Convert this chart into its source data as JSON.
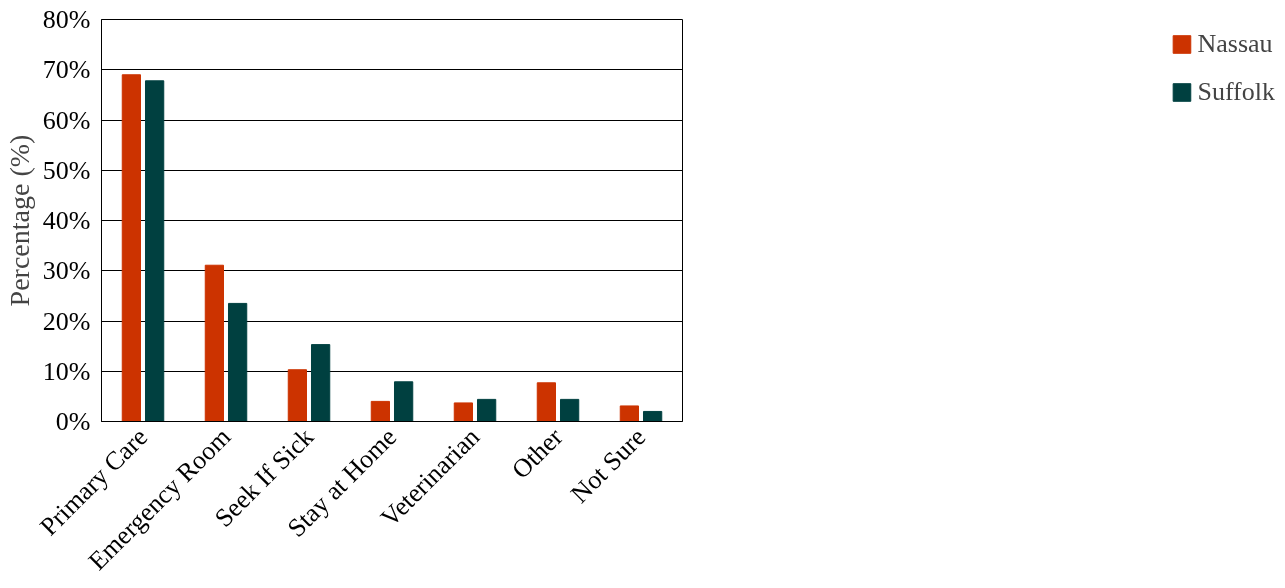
{
  "chart_data": {
    "type": "bar",
    "ylabel": "Percentage (%)",
    "categories": [
      "Primary Care",
      "Emergency Room",
      "Seek If Sick",
      "Stay at Home",
      "Veterinarian",
      "Other",
      "Not Sure"
    ],
    "series": [
      {
        "name": "Nassau",
        "color": "#cc3300",
        "values": [
          69,
          31.1,
          10.3,
          4,
          3.7,
          7.7,
          3.1
        ]
      },
      {
        "name": "Suffolk",
        "color": "#004040",
        "values": [
          67.8,
          23.5,
          15.3,
          7.9,
          4.4,
          4.4,
          2
        ]
      }
    ],
    "ylim": [
      0,
      80
    ],
    "yticks": [
      {
        "value": 0,
        "label": "0%"
      },
      {
        "value": 10,
        "label": "10%"
      },
      {
        "value": 20,
        "label": "20%"
      },
      {
        "value": 30,
        "label": "30%"
      },
      {
        "value": 40,
        "label": "40%"
      },
      {
        "value": 50,
        "label": "50%"
      },
      {
        "value": 60,
        "label": "60%"
      },
      {
        "value": 70,
        "label": "70%"
      },
      {
        "value": 80,
        "label": "80%"
      }
    ],
    "grid": "y",
    "legend": "right"
  }
}
